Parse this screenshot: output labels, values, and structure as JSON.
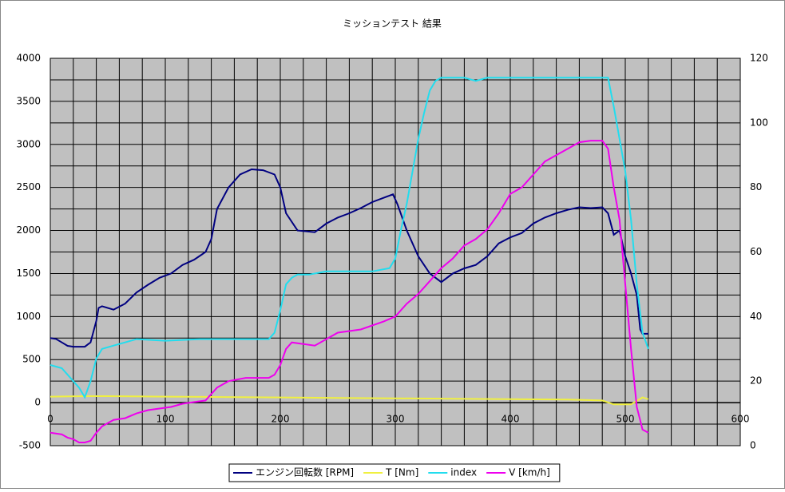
{
  "chart_data": {
    "type": "line",
    "title": "ミッションテスト 結果",
    "xlim": [
      0,
      600
    ],
    "xticks": [
      0,
      100,
      200,
      300,
      400,
      500,
      600
    ],
    "xgrid": [
      0,
      20,
      40,
      60,
      80,
      100,
      120,
      140,
      160,
      180,
      200,
      220,
      240,
      260,
      280,
      300,
      320,
      340,
      360,
      380,
      400,
      420,
      440,
      460,
      480,
      500,
      520,
      540,
      560,
      580,
      600
    ],
    "ylim": [
      -500,
      4000
    ],
    "yticks": [
      -500,
      0,
      500,
      1000,
      1500,
      2000,
      2500,
      3000,
      3500,
      4000
    ],
    "ygrid": [
      -500,
      -250,
      0,
      250,
      500,
      750,
      1000,
      1250,
      1500,
      1750,
      2000,
      2250,
      2500,
      2750,
      3000,
      3250,
      3500,
      3750,
      4000
    ],
    "y2lim": [
      0,
      120
    ],
    "y2ticks": [
      0,
      20,
      40,
      60,
      80,
      100,
      120
    ],
    "legend": "bottom",
    "plot_color": "#c0c0c0",
    "series": [
      {
        "name": "エンジン回転数 [RPM]",
        "color": "#000080",
        "x": [
          0,
          5,
          10,
          15,
          20,
          30,
          35,
          40,
          42,
          45,
          55,
          65,
          75,
          85,
          95,
          105,
          115,
          125,
          135,
          140,
          145,
          155,
          165,
          175,
          185,
          195,
          200,
          205,
          215,
          230,
          240,
          250,
          260,
          270,
          280,
          290,
          298,
          302,
          310,
          320,
          330,
          340,
          350,
          360,
          370,
          380,
          390,
          400,
          410,
          420,
          430,
          440,
          450,
          460,
          470,
          480,
          485,
          490,
          495,
          500,
          505,
          510,
          513,
          515,
          520
        ],
        "values": [
          750,
          740,
          700,
          660,
          650,
          650,
          700,
          950,
          1100,
          1120,
          1080,
          1150,
          1280,
          1370,
          1450,
          1500,
          1600,
          1660,
          1750,
          1900,
          2250,
          2500,
          2650,
          2710,
          2700,
          2650,
          2500,
          2200,
          2000,
          1980,
          2080,
          2150,
          2200,
          2260,
          2330,
          2380,
          2420,
          2300,
          2000,
          1700,
          1500,
          1400,
          1500,
          1560,
          1600,
          1700,
          1850,
          1920,
          1970,
          2080,
          2150,
          2200,
          2240,
          2270,
          2260,
          2270,
          2200,
          1950,
          2000,
          1700,
          1500,
          1250,
          850,
          800,
          800
        ]
      },
      {
        "name": "T [Nm]",
        "color": "#f0f040",
        "x": [
          0,
          30,
          50,
          100,
          150,
          200,
          250,
          300,
          350,
          400,
          450,
          480,
          490,
          505,
          515,
          520
        ],
        "values": [
          70,
          75,
          75,
          70,
          65,
          60,
          55,
          50,
          45,
          40,
          35,
          25,
          -20,
          -20,
          60,
          40
        ]
      },
      {
        "name": "index",
        "color": "#22ddee",
        "axis": "y2",
        "x": [
          0,
          10,
          20,
          25,
          30,
          35,
          40,
          45,
          55,
          65,
          75,
          100,
          130,
          150,
          190,
          195,
          200,
          205,
          210,
          215,
          225,
          240,
          260,
          280,
          295,
          300,
          305,
          310,
          315,
          320,
          325,
          330,
          335,
          340,
          360,
          370,
          380,
          390,
          400,
          450,
          480,
          485,
          490,
          495,
          500,
          505,
          510,
          515,
          520
        ],
        "values": [
          25,
          24,
          20,
          18,
          15,
          20,
          27,
          30,
          31,
          32,
          33,
          32.5,
          33,
          33,
          33,
          35,
          42,
          50,
          52,
          53,
          53,
          54,
          54,
          54,
          55,
          58,
          67,
          75,
          85,
          95,
          103,
          110,
          113,
          114,
          114,
          113,
          114,
          114,
          114,
          114,
          114,
          114,
          105,
          95,
          85,
          70,
          50,
          35,
          30
        ]
      },
      {
        "name": "V [km/h]",
        "color": "#ee00ee",
        "axis": "y2",
        "x": [
          0,
          10,
          15,
          20,
          25,
          30,
          35,
          40,
          45,
          55,
          65,
          75,
          85,
          95,
          105,
          115,
          125,
          135,
          140,
          145,
          155,
          170,
          190,
          195,
          200,
          205,
          210,
          220,
          230,
          240,
          250,
          270,
          290,
          300,
          310,
          320,
          330,
          340,
          350,
          360,
          370,
          380,
          390,
          400,
          410,
          420,
          430,
          440,
          450,
          460,
          470,
          480,
          485,
          490,
          495,
          500,
          505,
          510,
          515,
          520
        ],
        "values": [
          4,
          3.5,
          2.5,
          2,
          1,
          1,
          1.5,
          4,
          6,
          8,
          8.5,
          10,
          11,
          11.5,
          12,
          13,
          13.5,
          14,
          16,
          18,
          20,
          21,
          21,
          22,
          25,
          30,
          32,
          31.5,
          31,
          33,
          35,
          36,
          38.5,
          40,
          44,
          47,
          51,
          55,
          58,
          62,
          64,
          67,
          72,
          78,
          80,
          84,
          88,
          90,
          92,
          94,
          94.5,
          94.5,
          92,
          80,
          70,
          50,
          30,
          12,
          5,
          4
        ]
      }
    ]
  }
}
